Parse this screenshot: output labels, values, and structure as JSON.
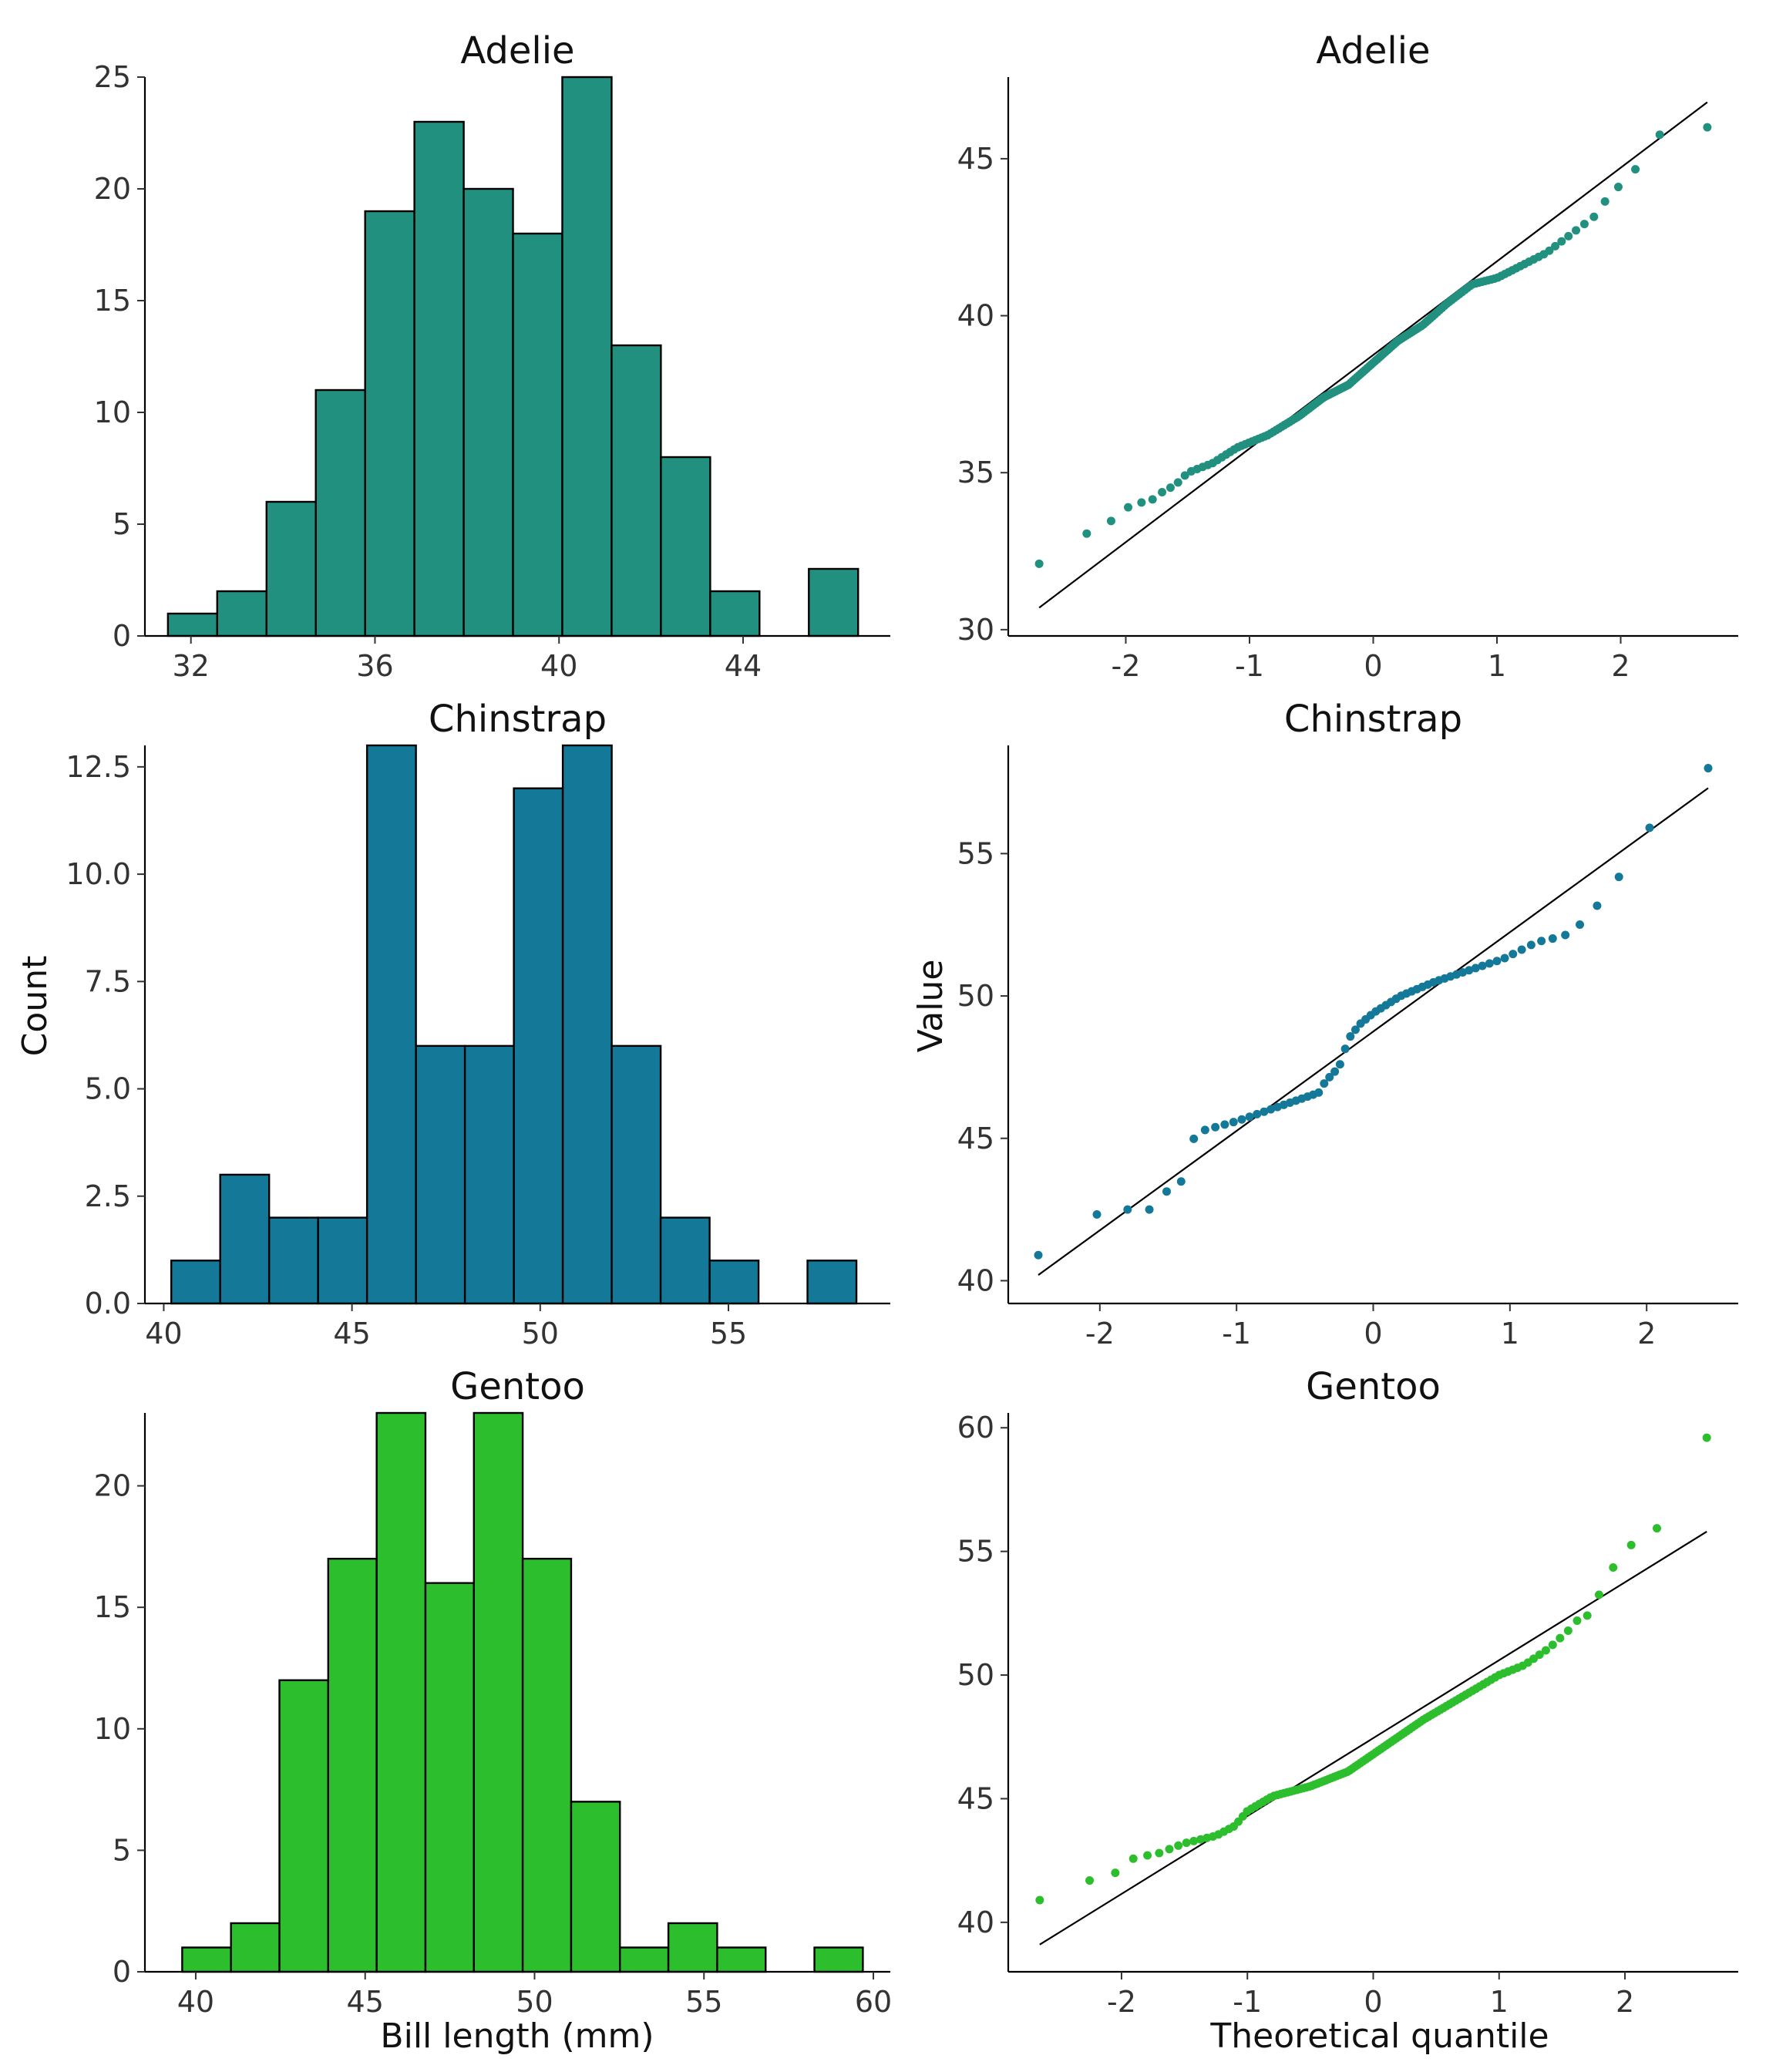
{
  "figure": {
    "y_label_left": "Count",
    "y_label_right": "Value",
    "x_label_left": "Bill length (mm)",
    "x_label_right": "Theoretical quantile"
  },
  "chart_data": [
    {
      "type": "bar",
      "title": "Adelie",
      "color": "#21907e",
      "bin_edges": [
        31.5,
        32.571,
        33.643,
        34.714,
        35.786,
        36.857,
        37.929,
        39.0,
        40.071,
        41.143,
        42.214,
        43.286,
        44.357,
        45.429,
        46.5
      ],
      "values": [
        1,
        2,
        6,
        11,
        19,
        23,
        20,
        18,
        25,
        13,
        8,
        2,
        0,
        3
      ],
      "x_ticks": [
        "32",
        "36",
        "40",
        "44"
      ],
      "y_ticks": [
        "0",
        "5",
        "10",
        "15",
        "20",
        "25"
      ],
      "xlim": [
        31.0,
        47.2
      ],
      "ylim": [
        0,
        25
      ],
      "ylabel": "",
      "xlabel": ""
    },
    {
      "type": "scatter",
      "title": "Adelie",
      "color": "#21907e",
      "x_ticks": [
        "-2",
        "-1",
        "0",
        "1",
        "2"
      ],
      "y_ticks": [
        "30",
        "35",
        "40",
        "45"
      ],
      "xlim": [
        -2.95,
        2.95
      ],
      "ylim": [
        29.8,
        47.6
      ],
      "line": {
        "x": [
          -2.7,
          2.7
        ],
        "y": [
          30.7,
          46.8
        ]
      },
      "anchors": [
        [
          -2.7,
          32.1
        ],
        [
          -2.3,
          33.1
        ],
        [
          -2.1,
          33.5
        ],
        [
          -1.95,
          34.0
        ],
        [
          -1.8,
          34.1
        ],
        [
          -1.7,
          34.4
        ],
        [
          -1.6,
          34.6
        ],
        [
          -1.5,
          35.0
        ],
        [
          -1.3,
          35.3
        ],
        [
          -1.1,
          35.8
        ],
        [
          -0.85,
          36.2
        ],
        [
          -0.6,
          36.8
        ],
        [
          -0.4,
          37.4
        ],
        [
          -0.2,
          37.8
        ],
        [
          0.0,
          38.5
        ],
        [
          0.2,
          39.2
        ],
        [
          0.4,
          39.7
        ],
        [
          0.6,
          40.4
        ],
        [
          0.8,
          41.0
        ],
        [
          1.0,
          41.2
        ],
        [
          1.2,
          41.6
        ],
        [
          1.4,
          42.0
        ],
        [
          1.6,
          42.6
        ],
        [
          1.8,
          43.2
        ],
        [
          1.95,
          44.1
        ],
        [
          2.1,
          44.1
        ],
        [
          2.15,
          45.6
        ],
        [
          2.35,
          45.8
        ],
        [
          2.7,
          46.0
        ]
      ]
    },
    {
      "type": "bar",
      "title": "Chinstrap",
      "color": "#147899",
      "bin_edges": [
        40.2,
        41.5,
        42.8,
        44.1,
        45.4,
        46.7,
        48.0,
        49.3,
        50.6,
        51.9,
        53.2,
        54.5,
        55.8,
        57.1,
        58.4
      ],
      "values": [
        1,
        3,
        2,
        2,
        13,
        6,
        6,
        12,
        13,
        6,
        2,
        1,
        0,
        1
      ],
      "x_ticks": [
        "40",
        "45",
        "50",
        "55"
      ],
      "y_ticks": [
        "0.0",
        "2.5",
        "5.0",
        "7.5",
        "10.0",
        "12.5"
      ],
      "xlim": [
        39.5,
        59.3
      ],
      "ylim": [
        0,
        13
      ],
      "ylabel": "",
      "xlabel": ""
    },
    {
      "type": "scatter",
      "title": "Chinstrap",
      "color": "#147899",
      "x_ticks": [
        "-2",
        "-1",
        "0",
        "1",
        "2"
      ],
      "y_ticks": [
        "40",
        "45",
        "50",
        "55"
      ],
      "xlim": [
        -2.67,
        2.67
      ],
      "ylim": [
        39.2,
        58.8
      ],
      "line": {
        "x": [
          -2.45,
          2.45
        ],
        "y": [
          40.2,
          57.3
        ]
      },
      "anchors": [
        [
          -2.45,
          40.9
        ],
        [
          -2.0,
          42.4
        ],
        [
          -1.8,
          42.5
        ],
        [
          -1.62,
          42.5
        ],
        [
          -1.5,
          43.2
        ],
        [
          -1.4,
          43.5
        ],
        [
          -1.3,
          45.2
        ],
        [
          -1.0,
          45.6
        ],
        [
          -0.7,
          46.1
        ],
        [
          -0.4,
          46.6
        ],
        [
          -0.35,
          47.0
        ],
        [
          -0.25,
          47.5
        ],
        [
          -0.18,
          48.5
        ],
        [
          -0.1,
          49.0
        ],
        [
          0.0,
          49.4
        ],
        [
          0.2,
          50.0
        ],
        [
          0.45,
          50.5
        ],
        [
          0.7,
          50.9
        ],
        [
          0.95,
          51.3
        ],
        [
          1.2,
          51.9
        ],
        [
          1.3,
          52.0
        ],
        [
          1.45,
          52.2
        ],
        [
          1.55,
          52.7
        ],
        [
          1.7,
          53.5
        ],
        [
          1.8,
          54.2
        ],
        [
          2.0,
          55.8
        ],
        [
          2.45,
          58.0
        ]
      ]
    },
    {
      "type": "bar",
      "title": "Gentoo",
      "color": "#2dbe2d",
      "bin_edges": [
        39.6,
        41.04,
        42.47,
        43.91,
        45.34,
        46.78,
        48.21,
        49.65,
        51.08,
        52.52,
        53.95,
        55.39,
        56.82,
        58.26,
        59.69
      ],
      "values": [
        1,
        2,
        12,
        17,
        23,
        16,
        23,
        17,
        7,
        1,
        2,
        1,
        0,
        1
      ],
      "x_ticks": [
        "40",
        "45",
        "50",
        "55",
        "60"
      ],
      "y_ticks": [
        "0",
        "5",
        "10",
        "15",
        "20"
      ],
      "xlim": [
        38.5,
        60.5
      ],
      "ylim": [
        0,
        23
      ],
      "ylabel": "",
      "xlabel": ""
    },
    {
      "type": "scatter",
      "title": "Gentoo",
      "color": "#2dbe2d",
      "x_ticks": [
        "-2",
        "-1",
        "0",
        "1",
        "2"
      ],
      "y_ticks": [
        "40",
        "45",
        "50",
        "55",
        "60"
      ],
      "xlim": [
        -2.9,
        2.9
      ],
      "ylim": [
        38.0,
        60.6
      ],
      "line": {
        "x": [
          -2.65,
          2.65
        ],
        "y": [
          39.1,
          55.8
        ]
      },
      "anchors": [
        [
          -2.65,
          40.9
        ],
        [
          -2.25,
          41.7
        ],
        [
          -2.05,
          42.0
        ],
        [
          -1.9,
          42.6
        ],
        [
          -1.7,
          42.8
        ],
        [
          -1.5,
          43.2
        ],
        [
          -1.25,
          43.5
        ],
        [
          -1.1,
          43.9
        ],
        [
          -1.0,
          44.5
        ],
        [
          -0.8,
          45.1
        ],
        [
          -0.5,
          45.5
        ],
        [
          -0.2,
          46.1
        ],
        [
          0.0,
          46.8
        ],
        [
          0.2,
          47.5
        ],
        [
          0.4,
          48.2
        ],
        [
          0.6,
          48.8
        ],
        [
          0.8,
          49.4
        ],
        [
          1.0,
          50.0
        ],
        [
          1.2,
          50.4
        ],
        [
          1.4,
          51.1
        ],
        [
          1.55,
          51.8
        ],
        [
          1.62,
          52.2
        ],
        [
          1.7,
          52.4
        ],
        [
          1.8,
          53.3
        ],
        [
          1.9,
          54.3
        ],
        [
          2.0,
          55.1
        ],
        [
          2.25,
          55.9
        ],
        [
          2.65,
          59.6
        ]
      ]
    }
  ]
}
